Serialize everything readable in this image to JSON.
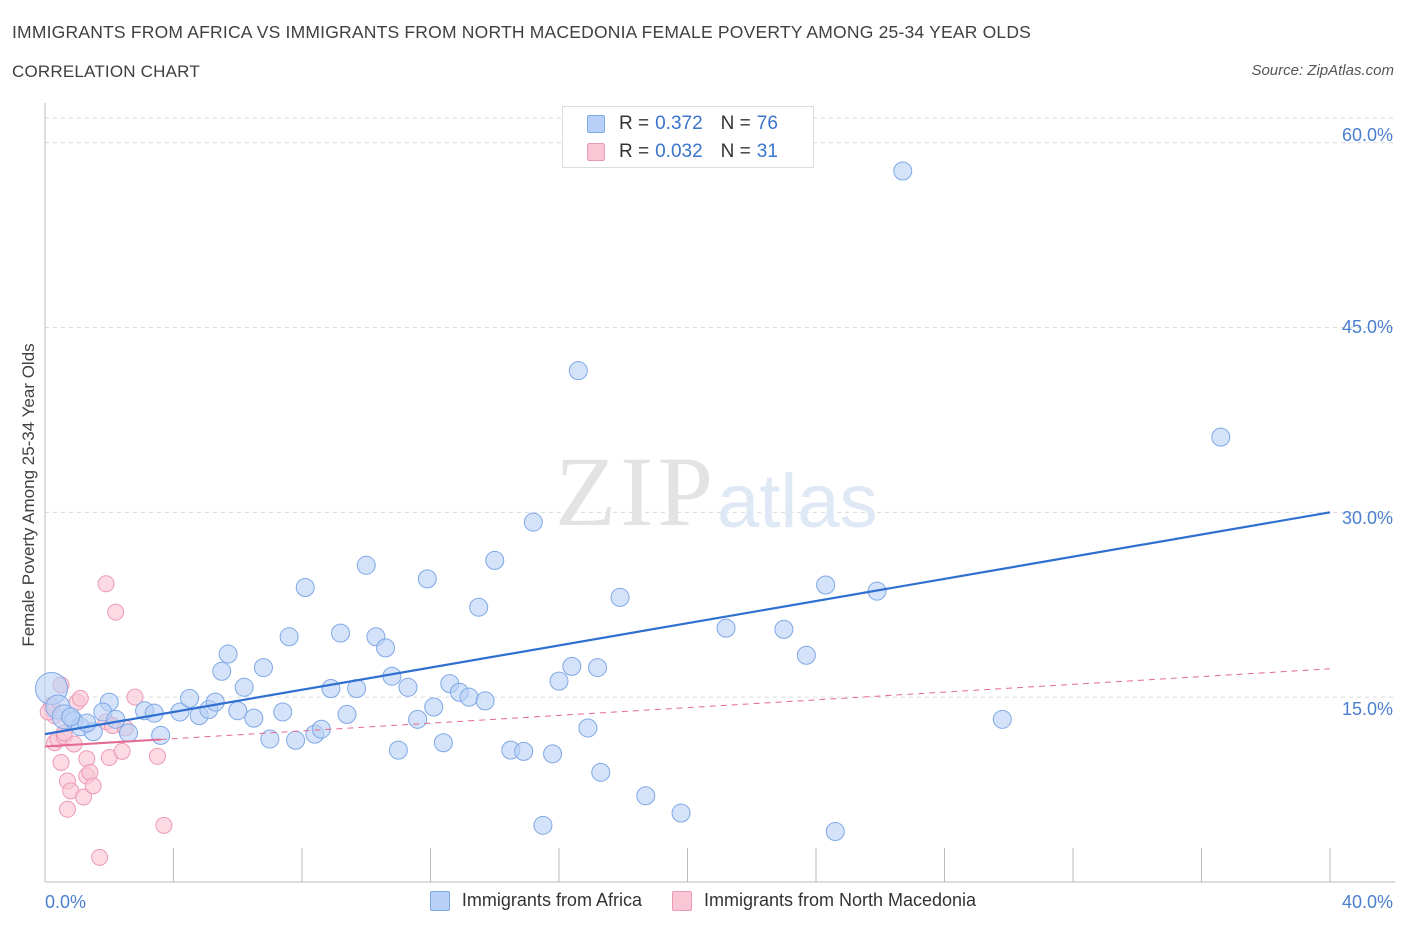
{
  "header": {
    "title": "IMMIGRANTS FROM AFRICA VS IMMIGRANTS FROM NORTH MACEDONIA FEMALE POVERTY AMONG 25-34 YEAR OLDS",
    "subtitle": "CORRELATION CHART",
    "source": "Source: ZipAtlas.com"
  },
  "watermark": {
    "zip": "ZIP",
    "atlas": "atlas"
  },
  "legend": {
    "rows": [
      {
        "r_label": "R =",
        "r_value": "0.372",
        "n_label": "N =",
        "n_value": "76",
        "color": "#b8d0f5",
        "border": "#7fa8e6"
      },
      {
        "r_label": "R =",
        "r_value": "0.032",
        "n_label": "N =",
        "n_value": "31",
        "color": "#f9c6d6",
        "border": "#ee9ab5"
      }
    ]
  },
  "bottom_legend": {
    "africa": "Immigrants from Africa",
    "macedonia": "Immigrants from North Macedonia"
  },
  "chart_data": {
    "type": "scatter",
    "title": "IMMIGRANTS FROM AFRICA VS IMMIGRANTS FROM NORTH MACEDONIA FEMALE POVERTY AMONG 25-34 YEAR OLDS",
    "subtitle": "CORRELATION CHART",
    "ylabel": "Female Poverty Among 25-34 Year Olds",
    "xlabel": "",
    "xlim": [
      0,
      40
    ],
    "ylim": [
      0,
      60
    ],
    "x_tick_labels": [
      {
        "value": 0,
        "label": "0.0%"
      },
      {
        "value": 40,
        "label": "40.0%"
      }
    ],
    "y_tick_labels": [
      {
        "value": 15,
        "label": "15.0%"
      },
      {
        "value": 30,
        "label": "30.0%"
      },
      {
        "value": 45,
        "label": "45.0%"
      },
      {
        "value": 60,
        "label": "60.0%"
      }
    ],
    "legend_position": "top-center",
    "series": [
      {
        "name": "Immigrants from Africa",
        "color": "#b8d0f5",
        "stroke": "#7fa8e6",
        "trend_color": "#2f6fcf",
        "trend": {
          "x": [
            0,
            40
          ],
          "y": [
            12.0,
            30.0
          ]
        },
        "trend_style": "solid",
        "points": [
          [
            0.2,
            15.7
          ],
          [
            0.4,
            14.2
          ],
          [
            0.6,
            13.4
          ],
          [
            0.9,
            13.1
          ],
          [
            1.1,
            12.6
          ],
          [
            1.5,
            12.2
          ],
          [
            2.0,
            14.6
          ],
          [
            2.6,
            12.1
          ],
          [
            1.8,
            13.8
          ],
          [
            2.2,
            13.2
          ],
          [
            3.1,
            13.9
          ],
          [
            3.6,
            11.9
          ],
          [
            4.2,
            13.8
          ],
          [
            4.5,
            14.9
          ],
          [
            4.8,
            13.5
          ],
          [
            5.1,
            14.0
          ],
          [
            5.3,
            14.6
          ],
          [
            5.5,
            17.1
          ],
          [
            5.7,
            18.5
          ],
          [
            6.0,
            13.9
          ],
          [
            6.2,
            15.8
          ],
          [
            6.5,
            13.3
          ],
          [
            6.8,
            17.4
          ],
          [
            7.0,
            11.6
          ],
          [
            7.4,
            13.8
          ],
          [
            7.6,
            19.9
          ],
          [
            7.8,
            11.5
          ],
          [
            8.1,
            23.9
          ],
          [
            8.4,
            12.0
          ],
          [
            8.6,
            12.4
          ],
          [
            8.9,
            15.7
          ],
          [
            9.2,
            20.2
          ],
          [
            9.4,
            13.6
          ],
          [
            9.7,
            15.7
          ],
          [
            10.0,
            25.7
          ],
          [
            10.3,
            19.9
          ],
          [
            10.6,
            19.0
          ],
          [
            10.8,
            16.7
          ],
          [
            11.0,
            10.7
          ],
          [
            11.3,
            15.8
          ],
          [
            11.6,
            13.2
          ],
          [
            11.9,
            24.6
          ],
          [
            12.1,
            14.2
          ],
          [
            12.4,
            11.3
          ],
          [
            12.6,
            16.1
          ],
          [
            12.9,
            15.4
          ],
          [
            13.2,
            15.0
          ],
          [
            13.5,
            22.3
          ],
          [
            13.7,
            14.7
          ],
          [
            14.0,
            26.1
          ],
          [
            14.5,
            10.7
          ],
          [
            14.9,
            10.6
          ],
          [
            15.2,
            29.2
          ],
          [
            15.5,
            4.6
          ],
          [
            15.8,
            10.4
          ],
          [
            16.0,
            16.3
          ],
          [
            16.4,
            17.5
          ],
          [
            16.6,
            41.5
          ],
          [
            16.9,
            12.5
          ],
          [
            17.2,
            17.4
          ],
          [
            17.3,
            8.9
          ],
          [
            17.9,
            23.1
          ],
          [
            18.7,
            7.0
          ],
          [
            19.8,
            5.6
          ],
          [
            21.2,
            20.6
          ],
          [
            23.0,
            20.5
          ],
          [
            23.7,
            18.4
          ],
          [
            24.3,
            24.1
          ],
          [
            24.6,
            4.1
          ],
          [
            25.9,
            23.6
          ],
          [
            26.7,
            57.7
          ],
          [
            29.8,
            13.2
          ],
          [
            36.6,
            36.1
          ],
          [
            1.3,
            12.9
          ],
          [
            0.8,
            13.4
          ],
          [
            3.4,
            13.7
          ]
        ]
      },
      {
        "name": "Immigrants from North Macedonia",
        "color": "#f9c6d6",
        "stroke": "#ee9ab5",
        "trend_color": "#e36a93",
        "trend": {
          "x": [
            0,
            40
          ],
          "y": [
            11.0,
            17.3
          ]
        },
        "trend_style": "solid-then-dashed",
        "points": [
          [
            0.2,
            14.3
          ],
          [
            0.3,
            13.5
          ],
          [
            0.3,
            11.3
          ],
          [
            0.4,
            11.6
          ],
          [
            0.5,
            16.0
          ],
          [
            0.6,
            11.8
          ],
          [
            0.5,
            9.7
          ],
          [
            0.7,
            8.2
          ],
          [
            0.8,
            7.4
          ],
          [
            0.7,
            5.9
          ],
          [
            0.9,
            11.2
          ],
          [
            1.0,
            14.6
          ],
          [
            1.1,
            14.9
          ],
          [
            1.2,
            6.9
          ],
          [
            1.3,
            8.6
          ],
          [
            1.3,
            10.0
          ],
          [
            1.4,
            8.9
          ],
          [
            1.5,
            7.8
          ],
          [
            1.7,
            2.0
          ],
          [
            1.9,
            13.0
          ],
          [
            2.0,
            10.1
          ],
          [
            2.1,
            12.7
          ],
          [
            1.9,
            24.2
          ],
          [
            2.2,
            21.9
          ],
          [
            2.4,
            10.6
          ],
          [
            2.5,
            12.5
          ],
          [
            2.8,
            15.0
          ],
          [
            3.5,
            10.2
          ],
          [
            3.7,
            4.6
          ],
          [
            0.1,
            13.8
          ],
          [
            0.6,
            12.1
          ]
        ]
      }
    ]
  }
}
